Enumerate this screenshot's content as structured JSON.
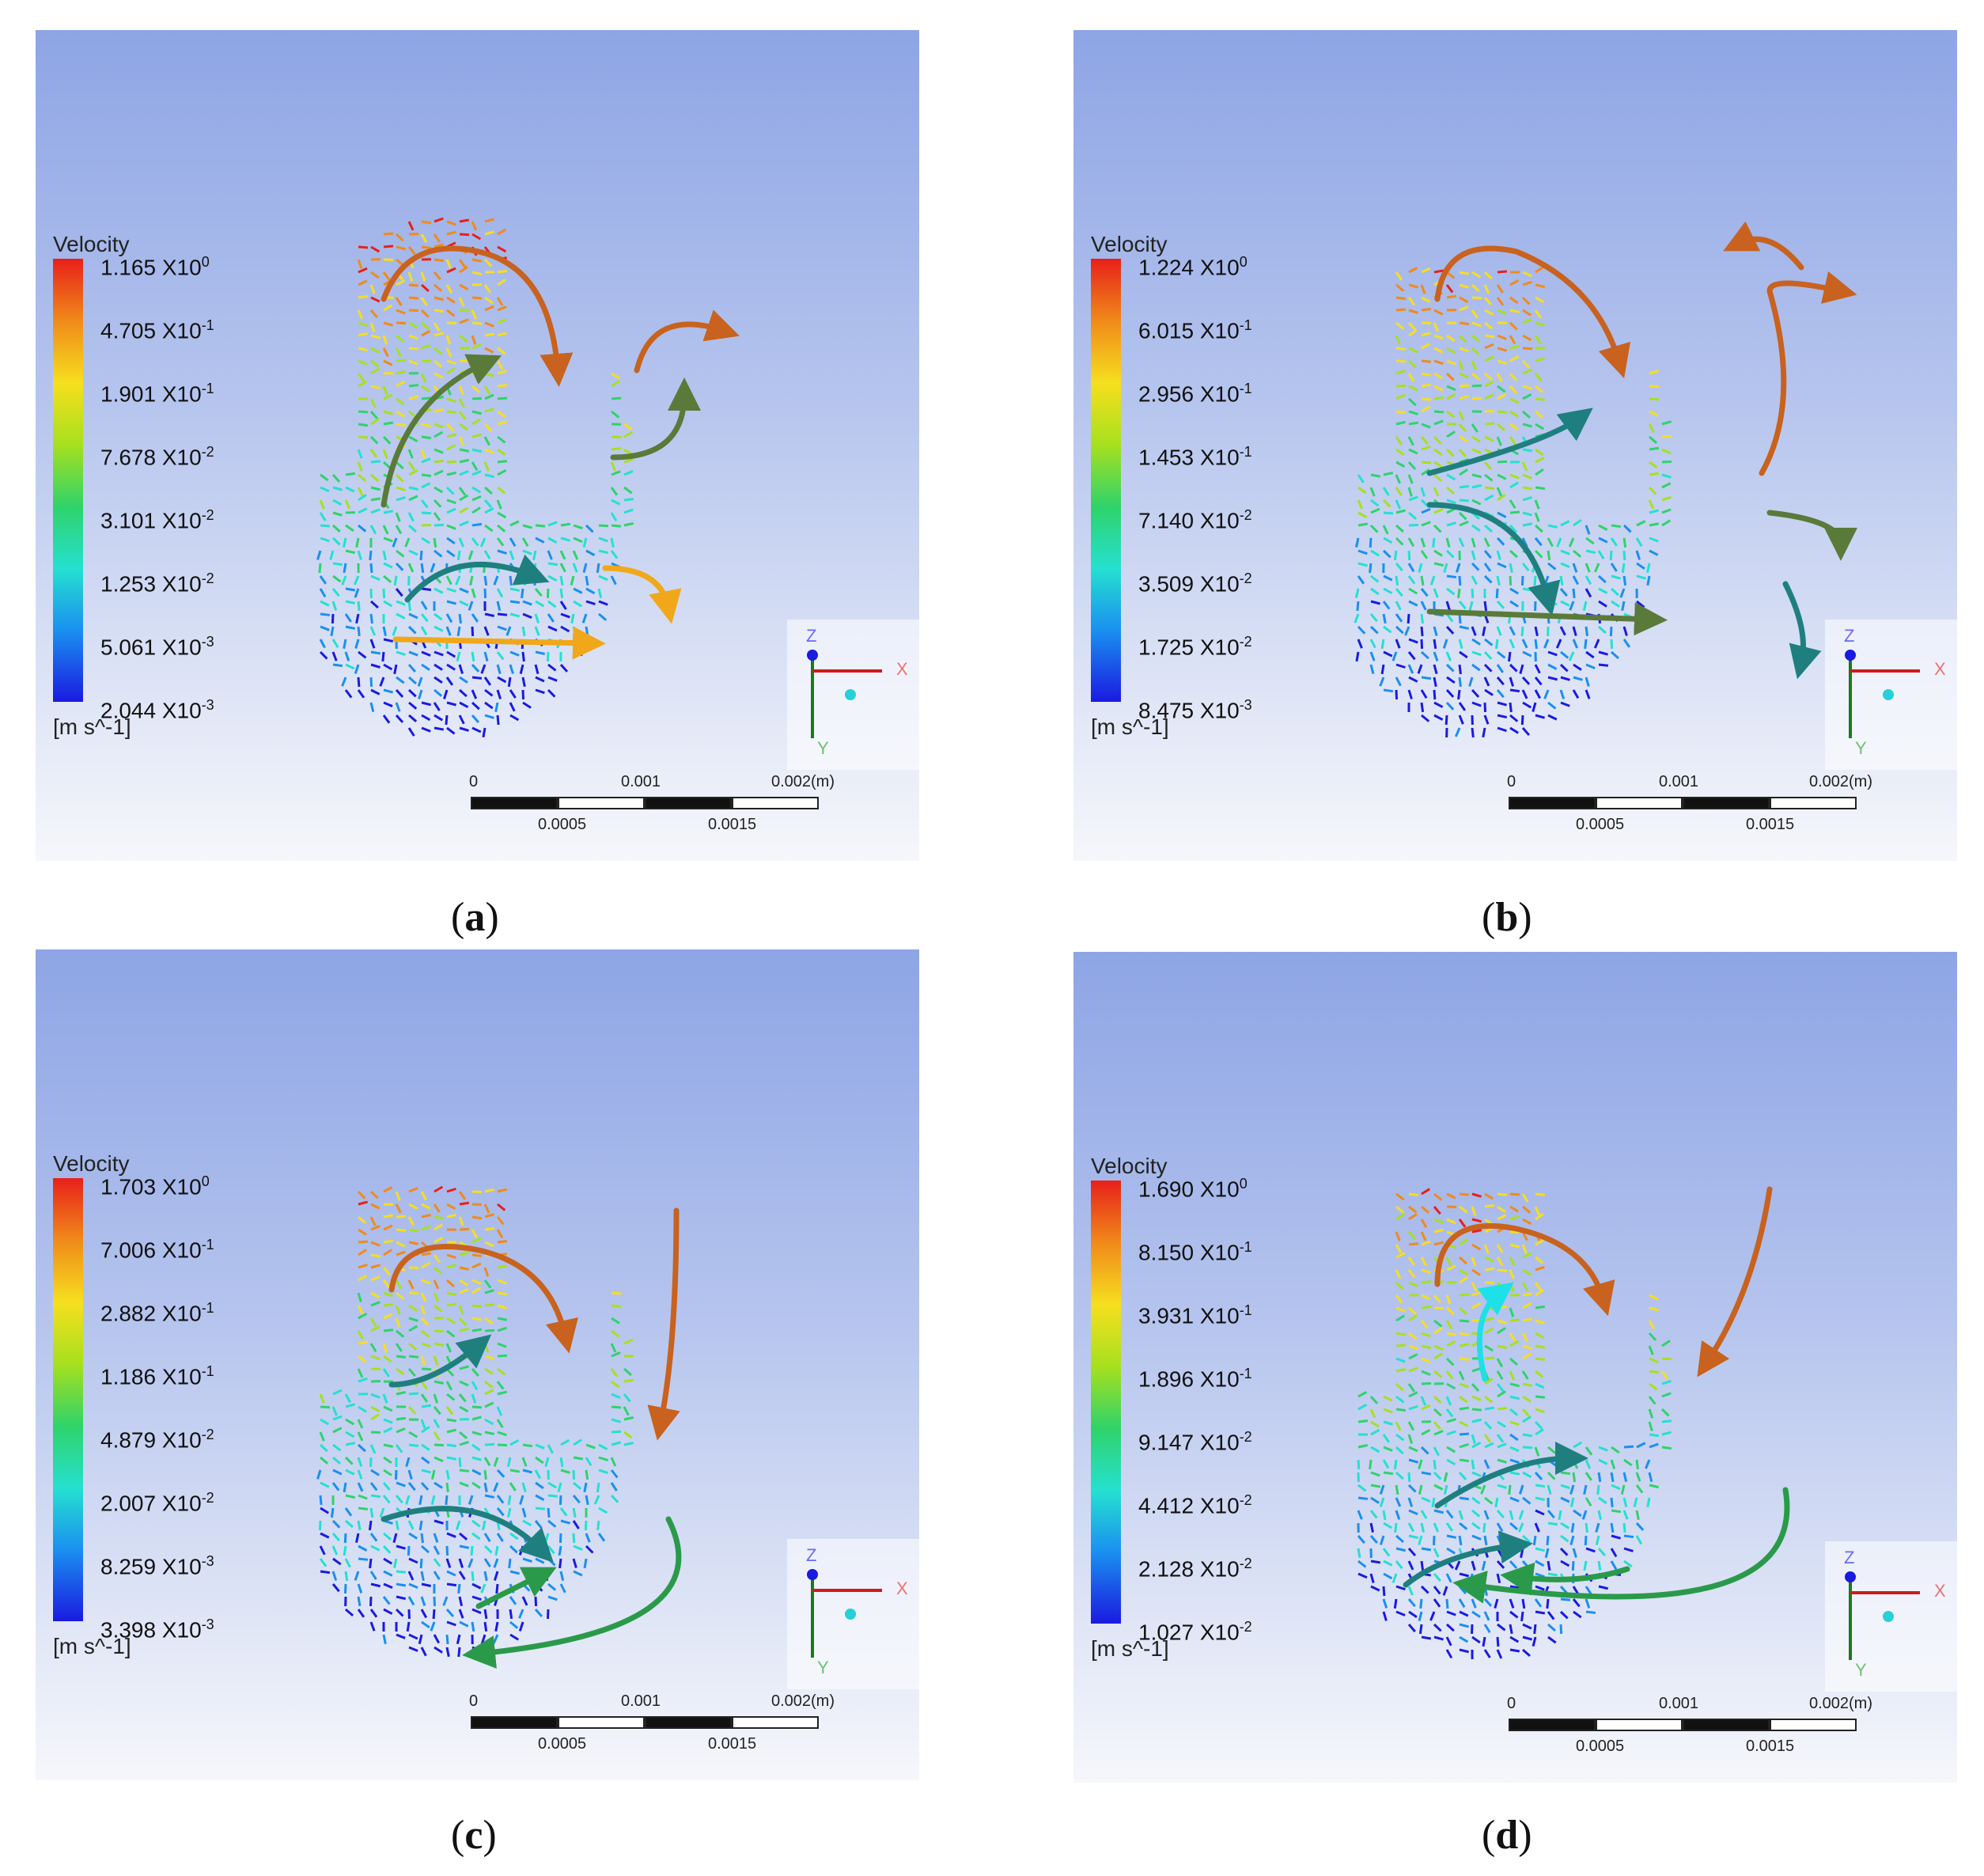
{
  "panels": [
    {
      "id": "a",
      "caption_label": "a",
      "legend": {
        "title": "Velocity",
        "unit": "[m s^-1]",
        "ticks": [
          {
            "mantissa": "1.165",
            "base": "X10",
            "exp": "0"
          },
          {
            "mantissa": "4.705",
            "base": "X10",
            "exp": "-1"
          },
          {
            "mantissa": "1.901",
            "base": "X10",
            "exp": "-1"
          },
          {
            "mantissa": "7.678",
            "base": "X10",
            "exp": "-2"
          },
          {
            "mantissa": "3.101",
            "base": "X10",
            "exp": "-2"
          },
          {
            "mantissa": "1.253",
            "base": "X10",
            "exp": "-2"
          },
          {
            "mantissa": "5.061",
            "base": "X10",
            "exp": "-3"
          },
          {
            "mantissa": "2.044",
            "base": "X10",
            "exp": "-3"
          }
        ]
      }
    },
    {
      "id": "b",
      "caption_label": "b",
      "legend": {
        "title": "Velocity",
        "unit": "[m s^-1]",
        "ticks": [
          {
            "mantissa": "1.224",
            "base": "X10",
            "exp": "0"
          },
          {
            "mantissa": "6.015",
            "base": "X10",
            "exp": "-1"
          },
          {
            "mantissa": "2.956",
            "base": "X10",
            "exp": "-1"
          },
          {
            "mantissa": "1.453",
            "base": "X10",
            "exp": "-1"
          },
          {
            "mantissa": "7.140",
            "base": "X10",
            "exp": "-2"
          },
          {
            "mantissa": "3.509",
            "base": "X10",
            "exp": "-2"
          },
          {
            "mantissa": "1.725",
            "base": "X10",
            "exp": "-2"
          },
          {
            "mantissa": "8.475",
            "base": "X10",
            "exp": "-3"
          }
        ]
      }
    },
    {
      "id": "c",
      "caption_label": "c",
      "legend": {
        "title": "Velocity",
        "unit": "[m s^-1]",
        "ticks": [
          {
            "mantissa": "1.703",
            "base": "X10",
            "exp": "0"
          },
          {
            "mantissa": "7.006",
            "base": "X10",
            "exp": "-1"
          },
          {
            "mantissa": "2.882",
            "base": "X10",
            "exp": "-1"
          },
          {
            "mantissa": "1.186",
            "base": "X10",
            "exp": "-1"
          },
          {
            "mantissa": "4.879",
            "base": "X10",
            "exp": "-2"
          },
          {
            "mantissa": "2.007",
            "base": "X10",
            "exp": "-2"
          },
          {
            "mantissa": "8.259",
            "base": "X10",
            "exp": "-3"
          },
          {
            "mantissa": "3.398",
            "base": "X10",
            "exp": "-3"
          }
        ]
      }
    },
    {
      "id": "d",
      "caption_label": "d",
      "legend": {
        "title": "Velocity",
        "unit": "[m s^-1]",
        "ticks": [
          {
            "mantissa": "1.690",
            "base": "X10",
            "exp": "0"
          },
          {
            "mantissa": "8.150",
            "base": "X10",
            "exp": "-1"
          },
          {
            "mantissa": "3.931",
            "base": "X10",
            "exp": "-1"
          },
          {
            "mantissa": "1.896",
            "base": "X10",
            "exp": "-1"
          },
          {
            "mantissa": "9.147",
            "base": "X10",
            "exp": "-2"
          },
          {
            "mantissa": "4.412",
            "base": "X10",
            "exp": "-2"
          },
          {
            "mantissa": "2.128",
            "base": "X10",
            "exp": "-2"
          },
          {
            "mantissa": "1.027",
            "base": "X10",
            "exp": "-2"
          }
        ]
      }
    }
  ],
  "axes_triad": {
    "z": "Z",
    "x": "X",
    "y": "Y"
  },
  "scale_bar": {
    "top_labels": [
      "0",
      "0.001",
      "0.002"
    ],
    "unit": "(m)",
    "bottom_labels": [
      "0.0005",
      "0.0015"
    ]
  },
  "colors": {
    "arrow_orange": "#c8621e",
    "arrow_teal": "#1f7f7f",
    "arrow_olive": "#5a7a3a",
    "arrow_yellow": "#f0a81a",
    "arrow_green": "#2a9a4a",
    "arrow_cyan": "#1ee0e8"
  }
}
